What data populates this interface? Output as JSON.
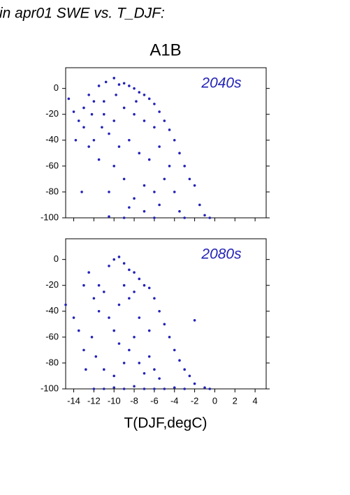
{
  "page_title": "in apr01 SWE vs. T_DJF:",
  "chart_data": [
    {
      "type": "scatter",
      "title": "A1B",
      "annotation": "2040s",
      "color": "#2323b8",
      "xlim": [
        -14.8,
        5.1
      ],
      "xticks": [
        -14,
        -12,
        -10,
        -8,
        -6,
        -4,
        -2,
        0,
        2,
        4
      ],
      "ylim": [
        -100,
        16
      ],
      "yticks": [
        -100,
        -80,
        -60,
        -40,
        -20,
        0
      ],
      "x": [
        -11.5,
        -10.8,
        -10,
        -9.5,
        -9,
        -8.5,
        -8,
        -7.5,
        -7,
        -6.5,
        -6,
        -5.5,
        -5,
        -4.5,
        -4,
        -3.5,
        -3,
        -2.5,
        -2,
        -1.5,
        -1,
        -0.5,
        -3,
        -6,
        -9,
        -10.5,
        -14.5,
        -14,
        -13.5,
        -13,
        -13,
        -12.5,
        -12,
        -12.5,
        -11.5,
        -13.2,
        -12,
        -11,
        -10,
        -9,
        -8,
        -7,
        -6,
        -10.5,
        -9.5,
        -8.5,
        -7.5,
        -6.5,
        -5.5,
        -4.5,
        -5,
        -6,
        -7,
        -8,
        -9,
        -10,
        -10.5,
        -8.5,
        -5.5,
        -4,
        -3.5,
        -7,
        -11,
        -9.8,
        -7.8,
        -11.2,
        -12.2,
        -13.8
      ],
      "y": [
        2,
        5,
        8,
        3,
        4,
        2,
        0,
        -3,
        -5,
        -8,
        -12,
        -18,
        -25,
        -32,
        -40,
        -50,
        -60,
        -70,
        -75,
        -90,
        -98,
        -100,
        -100,
        -100,
        -100,
        -99,
        -8,
        -18,
        -25,
        -30,
        -15,
        -5,
        -40,
        -45,
        -55,
        -80,
        -10,
        -20,
        -25,
        -15,
        -20,
        -25,
        -30,
        -35,
        -45,
        -40,
        -50,
        -55,
        -45,
        -60,
        -70,
        -80,
        -75,
        -85,
        -70,
        -60,
        -80,
        -92,
        -90,
        -80,
        -95,
        -95,
        -10,
        -5,
        -10,
        -30,
        -20,
        -40
      ]
    },
    {
      "type": "scatter",
      "annotation": "2080s",
      "xlabel": "T(DJF,degC)",
      "color": "#2323b8",
      "xlim": [
        -14.8,
        5.1
      ],
      "xticks": [
        -14,
        -12,
        -10,
        -8,
        -6,
        -4,
        -2,
        0,
        2,
        4
      ],
      "ylim": [
        -100,
        16
      ],
      "yticks": [
        -100,
        -80,
        -60,
        -40,
        -20,
        0
      ],
      "x": [
        -10.5,
        -10,
        -9.5,
        -9,
        -8.5,
        -8,
        -7.5,
        -7,
        -6.5,
        -6,
        -5.5,
        -5,
        -4.5,
        -4,
        -3.5,
        -3,
        -2.5,
        -2,
        -1,
        -0.5,
        -2,
        -12,
        -11,
        -10,
        -9,
        -8,
        -7,
        -6,
        -5,
        -4,
        -3,
        -14.8,
        -14,
        -13.5,
        -13,
        -12.8,
        -12.2,
        -11.8,
        -11.5,
        -11,
        -11.5,
        -12,
        -10.5,
        -10,
        -9.5,
        -9,
        -8.5,
        -8,
        -7.5,
        -7,
        -6.5,
        -6,
        -5.5,
        -9.5,
        -8.5,
        -7.5,
        -6.5,
        -10,
        -11,
        -13,
        -12.5,
        -8,
        -9
      ],
      "y": [
        -5,
        0,
        2,
        -3,
        -8,
        -10,
        -15,
        -20,
        -22,
        -30,
        -40,
        -50,
        -60,
        -70,
        -78,
        -85,
        -90,
        -96,
        -99,
        -100,
        -47,
        -100,
        -100,
        -99,
        -100,
        -98,
        -100,
        -100,
        -100,
        -99,
        -100,
        -35,
        -45,
        -55,
        -70,
        -85,
        -60,
        -75,
        -40,
        -25,
        -20,
        -30,
        -45,
        -55,
        -65,
        -80,
        -70,
        -60,
        -80,
        -88,
        -75,
        -85,
        -92,
        -35,
        -30,
        -45,
        -55,
        -90,
        -85,
        -20,
        -10,
        -25,
        -20
      ]
    }
  ]
}
